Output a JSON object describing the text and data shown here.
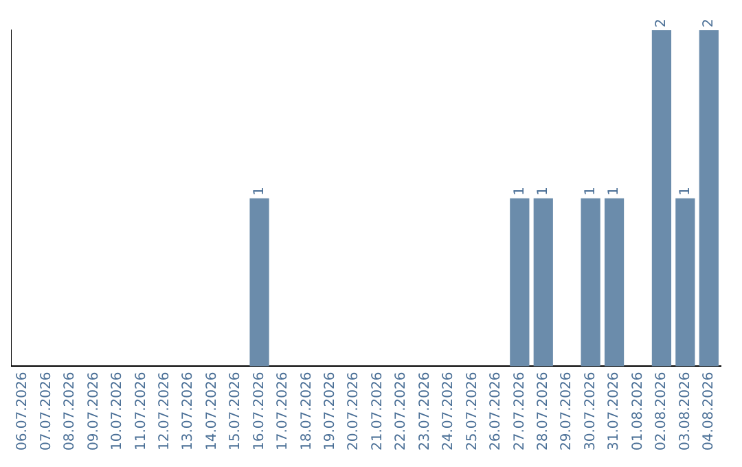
{
  "chart_data": {
    "type": "bar",
    "categories": [
      "06.07.2026",
      "07.07.2026",
      "08.07.2026",
      "09.07.2026",
      "10.07.2026",
      "11.07.2026",
      "12.07.2026",
      "13.07.2026",
      "14.07.2026",
      "15.07.2026",
      "16.07.2026",
      "17.07.2026",
      "18.07.2026",
      "19.07.2026",
      "20.07.2026",
      "21.07.2026",
      "22.07.2026",
      "23.07.2026",
      "24.07.2026",
      "25.07.2026",
      "26.07.2026",
      "27.07.2026",
      "28.07.2026",
      "29.07.2026",
      "30.07.2026",
      "31.07.2026",
      "01.08.2026",
      "02.08.2026",
      "03.08.2026",
      "04.08.2026"
    ],
    "values": [
      0,
      0,
      0,
      0,
      0,
      0,
      0,
      0,
      0,
      0,
      1,
      0,
      0,
      0,
      0,
      0,
      0,
      0,
      0,
      0,
      0,
      1,
      1,
      0,
      1,
      1,
      0,
      2,
      1,
      2
    ],
    "value_labels": [
      null,
      null,
      null,
      null,
      null,
      null,
      null,
      null,
      null,
      null,
      "1",
      null,
      null,
      null,
      null,
      null,
      null,
      null,
      null,
      null,
      null,
      "1",
      "1",
      null,
      "1",
      "1",
      null,
      "2",
      "1",
      "2"
    ],
    "color": "#6b8cab",
    "grid": false,
    "legend": false
  }
}
